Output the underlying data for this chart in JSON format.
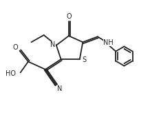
{
  "bg_color": "#ffffff",
  "line_color": "#222222",
  "lw": 1.3,
  "figsize": [
    2.18,
    1.7
  ],
  "dpi": 100,
  "fs": 7.0,
  "xlim": [
    0.5,
    9.5
  ],
  "ylim": [
    1.0,
    8.5
  ]
}
